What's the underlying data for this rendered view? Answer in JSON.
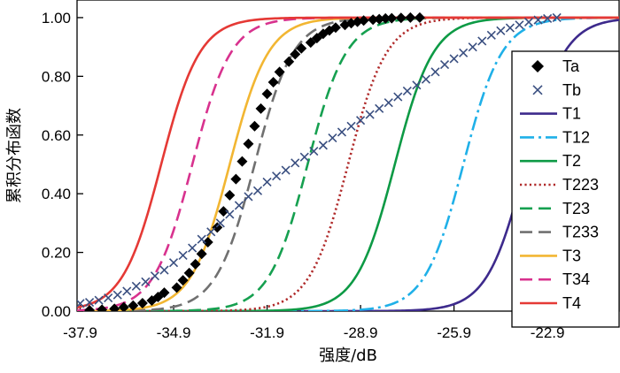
{
  "chart_data": {
    "type": "line",
    "title": "",
    "xlabel": "强度/dB",
    "ylabel": "累积分布函数",
    "xlim": [
      -38.0,
      -20.6
    ],
    "ylim": [
      0.0,
      1.06
    ],
    "x_ticks": [
      -37.9,
      -34.9,
      -31.9,
      -28.9,
      -25.9,
      -22.9
    ],
    "x_tick_labels": [
      "-37.9",
      "-34.9",
      "-31.9",
      "-28.9",
      "-25.9",
      "-22.9"
    ],
    "y_ticks": [
      0.0,
      0.2,
      0.4,
      0.6,
      0.8,
      1.0
    ],
    "y_tick_labels": [
      "0.00",
      "0.20",
      "0.40",
      "0.60",
      "0.80",
      "1.00"
    ],
    "legend_position": "right",
    "series": [
      {
        "name": "Ta",
        "kind": "scatter",
        "marker": "diamond",
        "color": "#000000",
        "x": [
          -37.6,
          -37.2,
          -36.8,
          -36.5,
          -36.2,
          -35.9,
          -35.6,
          -35.4,
          -35.2,
          -34.8,
          -34.6,
          -34.4,
          -34.2,
          -34.0,
          -33.8,
          -33.5,
          -33.3,
          -33.1,
          -32.9,
          -32.7,
          -32.5,
          -32.3,
          -32.1,
          -31.9,
          -31.7,
          -31.5,
          -31.2,
          -31.0,
          -30.8,
          -30.5,
          -30.3,
          -30.1,
          -29.9,
          -29.7,
          -29.4,
          -29.2,
          -29.0,
          -28.8,
          -28.5,
          -28.3,
          -28.1,
          -27.9,
          -27.6,
          -27.3,
          -27.0
        ],
        "y": [
          0.003,
          0.005,
          0.008,
          0.013,
          0.019,
          0.027,
          0.036,
          0.048,
          0.063,
          0.08,
          0.105,
          0.13,
          0.16,
          0.195,
          0.235,
          0.285,
          0.34,
          0.395,
          0.45,
          0.51,
          0.57,
          0.63,
          0.69,
          0.74,
          0.78,
          0.815,
          0.85,
          0.875,
          0.895,
          0.915,
          0.93,
          0.945,
          0.956,
          0.966,
          0.975,
          0.981,
          0.986,
          0.99,
          0.993,
          0.995,
          0.997,
          0.998,
          0.999,
          1.0,
          1.0
        ]
      },
      {
        "name": "Tb",
        "kind": "scatter",
        "marker": "x",
        "color": "#3a4f80",
        "x": [
          -37.9,
          -37.6,
          -37.3,
          -37.0,
          -36.7,
          -36.4,
          -36.1,
          -35.8,
          -35.5,
          -35.2,
          -34.9,
          -34.6,
          -34.3,
          -34.0,
          -33.7,
          -33.4,
          -33.1,
          -32.8,
          -32.5,
          -32.2,
          -31.9,
          -31.6,
          -31.3,
          -31.0,
          -30.7,
          -30.4,
          -30.1,
          -29.8,
          -29.5,
          -29.2,
          -28.9,
          -28.6,
          -28.3,
          -28.0,
          -27.7,
          -27.4,
          -27.1,
          -26.8,
          -26.5,
          -26.2,
          -25.9,
          -25.6,
          -25.3,
          -25.0,
          -24.7,
          -24.4,
          -24.1,
          -23.8,
          -23.5,
          -23.2,
          -22.9,
          -22.6
        ],
        "y": [
          0.026,
          0.03,
          0.037,
          0.045,
          0.055,
          0.068,
          0.085,
          0.1,
          0.12,
          0.14,
          0.165,
          0.19,
          0.215,
          0.245,
          0.27,
          0.3,
          0.33,
          0.36,
          0.39,
          0.41,
          0.44,
          0.46,
          0.48,
          0.505,
          0.525,
          0.545,
          0.565,
          0.59,
          0.61,
          0.63,
          0.65,
          0.67,
          0.69,
          0.71,
          0.73,
          0.75,
          0.77,
          0.79,
          0.815,
          0.84,
          0.86,
          0.88,
          0.9,
          0.92,
          0.94,
          0.955,
          0.965,
          0.975,
          0.985,
          0.992,
          0.997,
          1.0
        ]
      },
      {
        "name": "T1",
        "kind": "line",
        "dash": "solid",
        "color": "#3d2a8c",
        "cdf_mid_db": -23.6,
        "cdf_scale_db": 0.62
      },
      {
        "name": "T12",
        "kind": "line",
        "dash": "dashdot",
        "color": "#1fb0e8",
        "cdf_mid_db": -25.6,
        "cdf_scale_db": 0.62
      },
      {
        "name": "T2",
        "kind": "line",
        "dash": "solid",
        "color": "#0d9a45",
        "cdf_mid_db": -27.8,
        "cdf_scale_db": 0.62
      },
      {
        "name": "T223",
        "kind": "line",
        "dash": "dotted",
        "color": "#b02a2a",
        "cdf_mid_db": -29.3,
        "cdf_scale_db": 0.62
      },
      {
        "name": "T23",
        "kind": "line",
        "dash": "dashed",
        "color": "#16a050",
        "cdf_mid_db": -30.6,
        "cdf_scale_db": 0.62
      },
      {
        "name": "T233",
        "kind": "line",
        "dash": "dashed",
        "color": "#707070",
        "cdf_mid_db": -32.3,
        "cdf_scale_db": 0.62
      },
      {
        "name": "T3",
        "kind": "line",
        "dash": "solid",
        "color": "#f2b632",
        "cdf_mid_db": -33.1,
        "cdf_scale_db": 0.62
      },
      {
        "name": "T34",
        "kind": "line",
        "dash": "dashed",
        "color": "#d8328e",
        "cdf_mid_db": -34.3,
        "cdf_scale_db": 0.62
      },
      {
        "name": "T4",
        "kind": "line",
        "dash": "solid",
        "color": "#e53935",
        "cdf_mid_db": -35.3,
        "cdf_scale_db": 0.62
      }
    ]
  }
}
